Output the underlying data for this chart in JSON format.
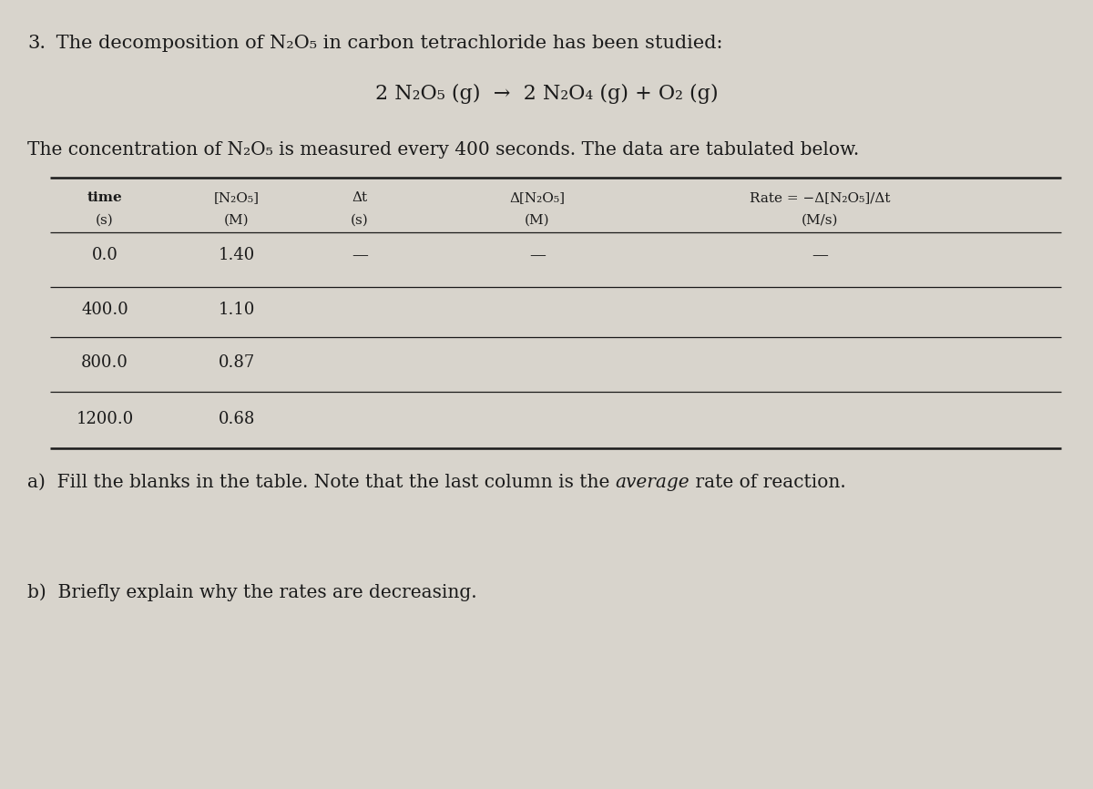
{
  "title_number": "3.",
  "title_text": " The decomposition of N₂O₅ in carbon tetrachloride has been studied:",
  "equation": "2 N₂O₅ (g)  →  2 N₂O₄ (g) + O₂ (g)",
  "subtitle": "The concentration of N₂O₅ is measured every 400 seconds. The data are tabulated below.",
  "col_headers_line1": [
    "time",
    "[N₂O₅]",
    "Δt",
    "Δ[N₂O₅]",
    "Rate = −Δ[N₂O₅]/Δt"
  ],
  "col_headers_line2": [
    "(s)",
    "(M)",
    "(s)",
    "(M)",
    "(M/s)"
  ],
  "rows": [
    [
      "0.0",
      "1.40",
      "—",
      "—",
      "—"
    ],
    [
      "400.0",
      "1.10",
      "",
      "",
      ""
    ],
    [
      "800.0",
      "0.87",
      "",
      "",
      ""
    ],
    [
      "1200.0",
      "0.68",
      "",
      "",
      ""
    ]
  ],
  "part_a_before": "a)  Fill the blanks in the table. Note that the last column is the ",
  "part_a_italic": "average",
  "part_a_after": " rate of reaction.",
  "part_b": "b)  Briefly explain why the rates are decreasing.",
  "bg_color": "#d8d4cc",
  "text_color": "#1a1a1a",
  "table_line_color": "#1a1a1a"
}
